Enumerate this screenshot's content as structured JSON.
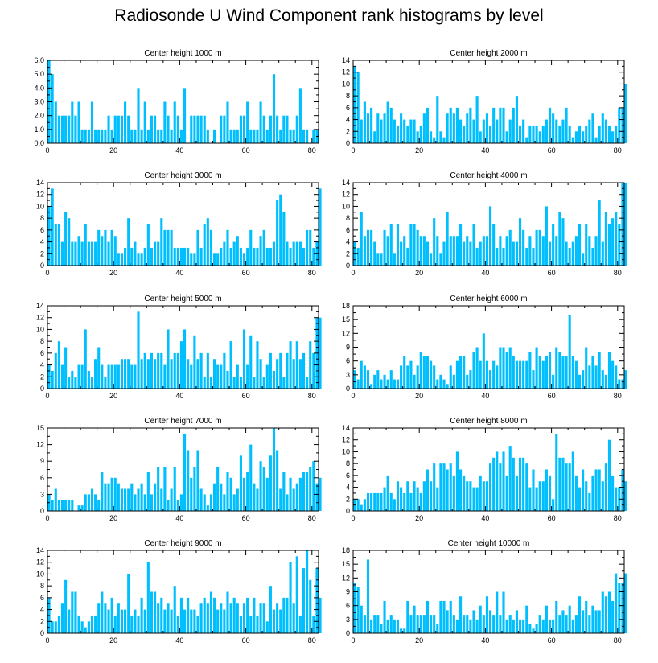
{
  "title": "Radiosonde U Wind Component rank histograms by level",
  "bar_color": "#00BFFF",
  "chart_data": [
    {
      "type": "bar",
      "title": "Center height 1000 m",
      "xlim": [
        0,
        82
      ],
      "ylim": [
        0,
        6
      ],
      "yticks": [
        0,
        1,
        2,
        3,
        4,
        5,
        6
      ],
      "ytick_labels": [
        "0.0",
        "1.0",
        "2.0",
        "3.0",
        "4.0",
        "5.0",
        "6.0"
      ],
      "xticks": [
        0,
        20,
        40,
        60,
        80
      ],
      "values": [
        6,
        5,
        3,
        2,
        2,
        2,
        2,
        3,
        2,
        3,
        1,
        1,
        1,
        3,
        1,
        1,
        1,
        1,
        2,
        1,
        2,
        2,
        2,
        3,
        2,
        1,
        1,
        4,
        1,
        3,
        1,
        2,
        2,
        1,
        1,
        3,
        2,
        1,
        3,
        2,
        1,
        4,
        0,
        2,
        2,
        2,
        2,
        2,
        1,
        0,
        1,
        0,
        2,
        2,
        3,
        1,
        1,
        1,
        2,
        2,
        3,
        1,
        1,
        1,
        3,
        2,
        1,
        2,
        5,
        2,
        1,
        2,
        2,
        1,
        1,
        2,
        4,
        1,
        1,
        0,
        1,
        1
      ]
    },
    {
      "type": "bar",
      "title": "Center height 2000 m",
      "xlim": [
        0,
        82
      ],
      "ylim": [
        0,
        14
      ],
      "yticks": [
        0,
        2,
        4,
        6,
        8,
        10,
        12,
        14
      ],
      "xticks": [
        0,
        20,
        40,
        60,
        80
      ],
      "values": [
        13,
        12,
        4,
        7,
        5,
        6,
        2,
        5,
        4,
        5,
        7,
        6,
        4,
        3,
        5,
        4,
        3,
        4,
        4,
        2,
        3,
        5,
        6,
        2,
        1,
        8,
        2,
        1,
        5,
        6,
        5,
        6,
        4,
        3,
        5,
        6,
        4,
        8,
        2,
        4,
        5,
        3,
        6,
        4,
        6,
        6,
        2,
        4,
        6,
        8,
        3,
        4,
        1,
        3,
        3,
        3,
        2,
        3,
        4,
        6,
        5,
        4,
        3,
        4,
        6,
        3,
        1,
        2,
        3,
        2,
        3,
        4,
        5,
        1,
        3,
        5,
        4,
        3,
        2,
        3,
        6,
        6,
        10
      ]
    },
    {
      "type": "bar",
      "title": "Center height 3000 m",
      "xlim": [
        0,
        82
      ],
      "ylim": [
        0,
        14
      ],
      "yticks": [
        0,
        2,
        4,
        6,
        8,
        10,
        12,
        14
      ],
      "xticks": [
        0,
        20,
        40,
        60,
        80
      ],
      "values": [
        10,
        13,
        7,
        7,
        4,
        9,
        8,
        4,
        4,
        5,
        4,
        7,
        4,
        4,
        4,
        6,
        5,
        6,
        4,
        6,
        5,
        2,
        2,
        3,
        8,
        3,
        4,
        2,
        2,
        3,
        7,
        3,
        4,
        4,
        8,
        6,
        6,
        6,
        3,
        3,
        3,
        3,
        3,
        2,
        2,
        6,
        3,
        7,
        8,
        6,
        2,
        2,
        3,
        4,
        6,
        3,
        4,
        5,
        3,
        2,
        3,
        6,
        3,
        3,
        5,
        6,
        3,
        3,
        4,
        11,
        12,
        9,
        4,
        3,
        4,
        4,
        4,
        3,
        6,
        6,
        3,
        4,
        13
      ]
    },
    {
      "type": "bar",
      "title": "Center height 4000 m",
      "xlim": [
        0,
        82
      ],
      "ylim": [
        0,
        14
      ],
      "yticks": [
        0,
        2,
        4,
        6,
        8,
        10,
        12,
        14
      ],
      "xticks": [
        0,
        20,
        40,
        60,
        80
      ],
      "values": [
        4,
        3,
        9,
        5,
        6,
        6,
        4,
        2,
        2,
        6,
        5,
        7,
        2,
        7,
        4,
        5,
        3,
        7,
        7,
        6,
        5,
        5,
        4,
        2,
        8,
        5,
        2,
        4,
        9,
        5,
        5,
        5,
        7,
        4,
        5,
        4,
        7,
        3,
        4,
        5,
        5,
        10,
        7,
        3,
        5,
        3,
        5,
        6,
        4,
        4,
        8,
        6,
        3,
        5,
        3,
        6,
        6,
        5,
        10,
        4,
        7,
        5,
        9,
        8,
        4,
        3,
        4,
        5,
        7,
        2,
        7,
        5,
        3,
        5,
        11,
        4,
        9,
        7,
        8,
        9,
        7,
        14,
        14
      ]
    },
    {
      "type": "bar",
      "title": "Center height 5000 m",
      "xlim": [
        0,
        82
      ],
      "ylim": [
        0,
        14
      ],
      "yticks": [
        0,
        2,
        4,
        6,
        8,
        10,
        12,
        14
      ],
      "xticks": [
        0,
        20,
        40,
        60,
        80
      ],
      "values": [
        4,
        3,
        6,
        8,
        4,
        7,
        2,
        3,
        2,
        4,
        4,
        10,
        3,
        2,
        5,
        7,
        4,
        2,
        4,
        4,
        4,
        4,
        5,
        5,
        5,
        4,
        4,
        13,
        5,
        6,
        5,
        6,
        5,
        6,
        6,
        4,
        10,
        5,
        6,
        6,
        8,
        10,
        5,
        4,
        9,
        5,
        6,
        2,
        6,
        2,
        5,
        4,
        4,
        6,
        3,
        8,
        2,
        4,
        2,
        10,
        4,
        9,
        2,
        8,
        5,
        2,
        4,
        6,
        3,
        5,
        6,
        2,
        6,
        8,
        5,
        8,
        5,
        6,
        2,
        8,
        6,
        12,
        12
      ]
    },
    {
      "type": "bar",
      "title": "Center height 6000 m",
      "xlim": [
        0,
        82
      ],
      "ylim": [
        0,
        18
      ],
      "yticks": [
        0,
        3,
        6,
        9,
        12,
        15,
        18
      ],
      "xticks": [
        0,
        20,
        40,
        60,
        80
      ],
      "values": [
        4,
        2,
        6,
        5,
        4,
        1,
        3,
        4,
        2,
        3,
        2,
        4,
        2,
        2,
        5,
        7,
        5,
        6,
        3,
        5,
        8,
        7,
        7,
        6,
        5,
        2,
        3,
        2,
        1,
        5,
        3,
        6,
        7,
        7,
        3,
        4,
        8,
        9,
        6,
        12,
        6,
        4,
        6,
        5,
        9,
        9,
        8,
        9,
        7,
        6,
        6,
        6,
        6,
        8,
        4,
        9,
        7,
        6,
        7,
        8,
        3,
        9,
        8,
        7,
        7,
        16,
        7,
        6,
        3,
        4,
        9,
        5,
        7,
        5,
        8,
        4,
        3,
        8,
        6,
        5,
        2,
        2,
        4
      ]
    },
    {
      "type": "bar",
      "title": "Center height 7000 m",
      "xlim": [
        0,
        82
      ],
      "ylim": [
        0,
        15
      ],
      "yticks": [
        0,
        3,
        6,
        9,
        12,
        15
      ],
      "xticks": [
        0,
        20,
        40,
        60,
        80
      ],
      "values": [
        3,
        2,
        4,
        2,
        2,
        2,
        2,
        2,
        0,
        1,
        1,
        3,
        3,
        4,
        3,
        2,
        7,
        5,
        5,
        6,
        6,
        5,
        4,
        4,
        4,
        5,
        3,
        4,
        5,
        3,
        7,
        3,
        5,
        8,
        4,
        8,
        2,
        4,
        8,
        2,
        3,
        14,
        11,
        6,
        8,
        11,
        4,
        3,
        1,
        3,
        5,
        8,
        5,
        3,
        7,
        6,
        3,
        4,
        10,
        6,
        7,
        12,
        5,
        4,
        9,
        8,
        6,
        10,
        15,
        11,
        4,
        7,
        3,
        6,
        4,
        5,
        6,
        7,
        7,
        8,
        9,
        5,
        6
      ]
    },
    {
      "type": "bar",
      "title": "Center height 8000 m",
      "xlim": [
        0,
        82
      ],
      "ylim": [
        0,
        14
      ],
      "yticks": [
        0,
        2,
        4,
        6,
        8,
        10,
        12,
        14
      ],
      "xticks": [
        0,
        20,
        40,
        60,
        80
      ],
      "values": [
        2,
        2,
        1,
        2,
        3,
        3,
        3,
        3,
        3,
        4,
        6,
        3,
        2,
        5,
        4,
        3,
        5,
        3,
        5,
        4,
        3,
        5,
        7,
        5,
        8,
        4,
        8,
        8,
        7,
        8,
        6,
        10,
        7,
        6,
        5,
        5,
        4,
        4,
        6,
        5,
        5,
        8,
        9,
        10,
        8,
        10,
        6,
        11,
        9,
        6,
        9,
        9,
        8,
        4,
        7,
        4,
        5,
        5,
        7,
        6,
        2,
        13,
        9,
        9,
        8,
        8,
        10,
        6,
        4,
        7,
        5,
        3,
        6,
        7,
        7,
        5,
        8,
        12,
        6,
        4,
        4,
        7,
        5
      ]
    },
    {
      "type": "bar",
      "title": "Center height 9000 m",
      "xlim": [
        0,
        82
      ],
      "ylim": [
        0,
        14
      ],
      "yticks": [
        0,
        2,
        4,
        6,
        8,
        10,
        12,
        14
      ],
      "xticks": [
        0,
        20,
        40,
        60,
        80
      ],
      "values": [
        6,
        2,
        2,
        3,
        5,
        9,
        4,
        7,
        7,
        3,
        2,
        1,
        2,
        3,
        3,
        5,
        7,
        5,
        4,
        6,
        3,
        5,
        4,
        4,
        10,
        3,
        4,
        3,
        6,
        4,
        12,
        7,
        7,
        5,
        6,
        4,
        5,
        4,
        8,
        3,
        6,
        4,
        6,
        4,
        4,
        3,
        5,
        6,
        5,
        7,
        6,
        4,
        5,
        4,
        7,
        5,
        6,
        5,
        3,
        5,
        6,
        3,
        6,
        3,
        5,
        5,
        2,
        8,
        4,
        5,
        4,
        6,
        6,
        12,
        5,
        13,
        3,
        11,
        14,
        9,
        3,
        11,
        6
      ]
    },
    {
      "type": "bar",
      "title": "Center height 10000 m",
      "xlim": [
        0,
        82
      ],
      "ylim": [
        0,
        18
      ],
      "yticks": [
        0,
        3,
        6,
        9,
        12,
        15,
        18
      ],
      "xticks": [
        0,
        20,
        40,
        60,
        80
      ],
      "values": [
        11,
        10,
        6,
        4,
        16,
        3,
        4,
        4,
        2,
        7,
        3,
        4,
        3,
        3,
        1,
        1,
        7,
        4,
        6,
        4,
        4,
        4,
        7,
        4,
        4,
        2,
        7,
        7,
        5,
        7,
        4,
        3,
        8,
        4,
        4,
        3,
        5,
        3,
        6,
        4,
        8,
        5,
        4,
        9,
        4,
        9,
        3,
        4,
        3,
        5,
        3,
        3,
        6,
        2,
        1,
        2,
        4,
        3,
        6,
        3,
        3,
        7,
        4,
        5,
        4,
        6,
        3,
        4,
        8,
        5,
        7,
        4,
        6,
        5,
        5,
        9,
        8,
        9,
        7,
        13,
        11,
        11,
        13
      ]
    }
  ]
}
